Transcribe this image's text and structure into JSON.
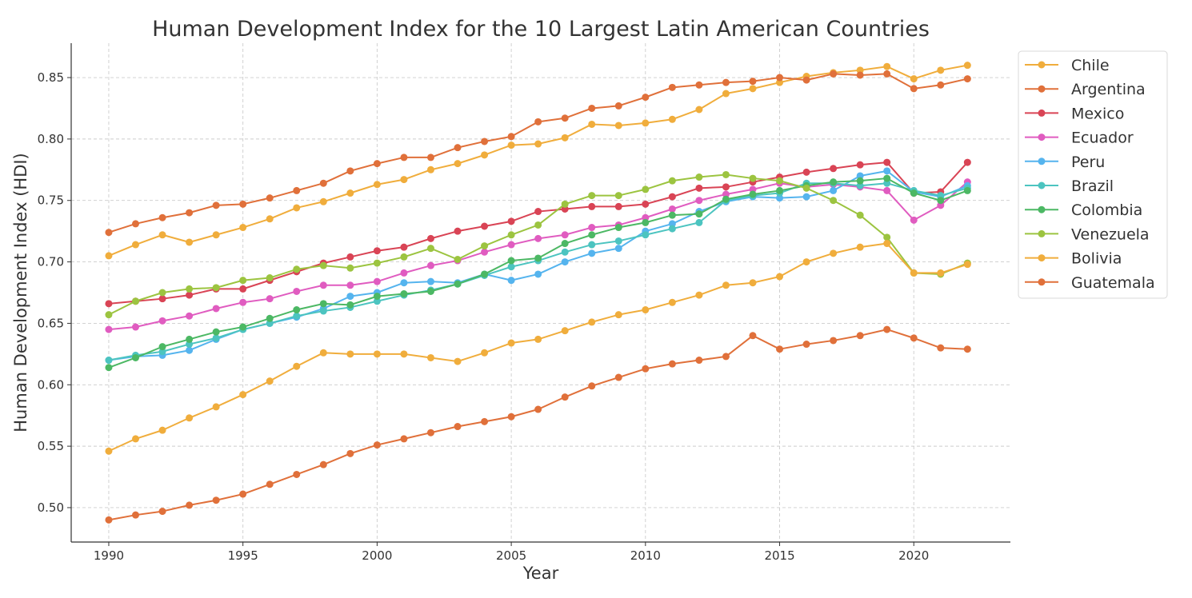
{
  "chart_data": {
    "type": "line",
    "title": "Human Development Index for the 10 Largest Latin American Countries",
    "xlabel": "Year",
    "ylabel": "Human Development Index (HDI)",
    "xlim": [
      1988.6,
      2023.6
    ],
    "ylim": [
      0.472,
      0.878
    ],
    "x_ticks": [
      1990,
      1995,
      2000,
      2005,
      2010,
      2015,
      2020
    ],
    "y_ticks": [
      0.5,
      0.55,
      0.6,
      0.65,
      0.7,
      0.75,
      0.8,
      0.85
    ],
    "y_tick_labels": [
      "0.50",
      "0.55",
      "0.60",
      "0.65",
      "0.70",
      "0.75",
      "0.80",
      "0.85"
    ],
    "grid": true,
    "legend_position": "outside-top-right",
    "x": [
      1990,
      1991,
      1992,
      1993,
      1994,
      1995,
      1996,
      1997,
      1998,
      1999,
      2000,
      2001,
      2002,
      2003,
      2004,
      2005,
      2006,
      2007,
      2008,
      2009,
      2010,
      2011,
      2012,
      2013,
      2014,
      2015,
      2016,
      2017,
      2018,
      2019,
      2020,
      2021,
      2022
    ],
    "series": [
      {
        "name": "Chile",
        "color": "#f0ad3c",
        "values": [
          0.705,
          0.714,
          0.722,
          0.716,
          0.722,
          0.728,
          0.735,
          0.744,
          0.749,
          0.756,
          0.763,
          0.767,
          0.775,
          0.78,
          0.787,
          0.795,
          0.796,
          0.801,
          0.812,
          0.811,
          0.813,
          0.816,
          0.824,
          0.837,
          0.841,
          0.846,
          0.851,
          0.854,
          0.856,
          0.859,
          0.849,
          0.856,
          0.86
        ]
      },
      {
        "name": "Argentina",
        "color": "#e0703a",
        "values": [
          0.724,
          0.731,
          0.736,
          0.74,
          0.746,
          0.747,
          0.752,
          0.758,
          0.764,
          0.774,
          0.78,
          0.785,
          0.785,
          0.793,
          0.798,
          0.802,
          0.814,
          0.817,
          0.825,
          0.827,
          0.834,
          0.842,
          0.844,
          0.846,
          0.847,
          0.85,
          0.848,
          0.853,
          0.852,
          0.853,
          0.841,
          0.844,
          0.849
        ]
      },
      {
        "name": "Mexico",
        "color": "#d94455",
        "values": [
          0.666,
          0.668,
          0.67,
          0.673,
          0.678,
          0.678,
          0.685,
          0.692,
          0.699,
          0.704,
          0.709,
          0.712,
          0.719,
          0.725,
          0.729,
          0.733,
          0.741,
          0.743,
          0.745,
          0.745,
          0.747,
          0.753,
          0.76,
          0.761,
          0.765,
          0.769,
          0.773,
          0.776,
          0.779,
          0.781,
          0.756,
          0.757,
          0.781
        ]
      },
      {
        "name": "Ecuador",
        "color": "#e05cc0",
        "values": [
          0.645,
          0.647,
          0.652,
          0.656,
          0.662,
          0.667,
          0.67,
          0.676,
          0.681,
          0.681,
          0.684,
          0.691,
          0.697,
          0.701,
          0.708,
          0.714,
          0.719,
          0.722,
          0.728,
          0.73,
          0.736,
          0.743,
          0.75,
          0.755,
          0.759,
          0.764,
          0.761,
          0.763,
          0.761,
          0.758,
          0.734,
          0.746,
          0.765
        ]
      },
      {
        "name": "Peru",
        "color": "#55b4ee",
        "values": [
          0.62,
          0.623,
          0.624,
          0.628,
          0.637,
          0.645,
          0.65,
          0.655,
          0.662,
          0.672,
          0.675,
          0.683,
          0.684,
          0.683,
          0.69,
          0.685,
          0.69,
          0.7,
          0.707,
          0.711,
          0.725,
          0.731,
          0.741,
          0.749,
          0.753,
          0.752,
          0.753,
          0.758,
          0.77,
          0.774,
          0.757,
          0.753,
          0.762
        ]
      },
      {
        "name": "Brazil",
        "color": "#4cc4c0",
        "values": [
          0.62,
          0.624,
          0.627,
          0.633,
          0.638,
          0.645,
          0.65,
          0.656,
          0.66,
          0.663,
          0.668,
          0.673,
          0.677,
          0.682,
          0.689,
          0.696,
          0.701,
          0.708,
          0.714,
          0.717,
          0.722,
          0.727,
          0.732,
          0.75,
          0.754,
          0.756,
          0.764,
          0.764,
          0.762,
          0.764,
          0.758,
          0.754,
          0.76
        ]
      },
      {
        "name": "Colombia",
        "color": "#4cb864",
        "values": [
          0.614,
          0.622,
          0.631,
          0.637,
          0.643,
          0.647,
          0.654,
          0.661,
          0.666,
          0.665,
          0.672,
          0.674,
          0.676,
          0.682,
          0.69,
          0.701,
          0.703,
          0.715,
          0.722,
          0.728,
          0.732,
          0.738,
          0.739,
          0.751,
          0.755,
          0.758,
          0.762,
          0.765,
          0.766,
          0.768,
          0.756,
          0.75,
          0.758
        ]
      },
      {
        "name": "Venezuela",
        "color": "#9cc440",
        "values": [
          0.657,
          0.668,
          0.675,
          0.678,
          0.679,
          0.685,
          0.687,
          0.694,
          0.697,
          0.695,
          0.699,
          0.704,
          0.711,
          0.702,
          0.713,
          0.722,
          0.73,
          0.747,
          0.754,
          0.754,
          0.759,
          0.766,
          0.769,
          0.771,
          0.768,
          0.766,
          0.76,
          0.75,
          0.738,
          0.72,
          0.691,
          0.69,
          0.699
        ]
      },
      {
        "name": "Bolivia",
        "color": "#f0ad3c",
        "values": [
          0.546,
          0.556,
          0.563,
          0.573,
          0.582,
          0.592,
          0.603,
          0.615,
          0.626,
          0.625,
          0.625,
          0.625,
          0.622,
          0.619,
          0.626,
          0.634,
          0.637,
          0.644,
          0.651,
          0.657,
          0.661,
          0.667,
          0.673,
          0.681,
          0.683,
          0.688,
          0.7,
          0.707,
          0.712,
          0.715,
          0.691,
          0.691,
          0.698
        ]
      },
      {
        "name": "Guatemala",
        "color": "#e0703a",
        "values": [
          0.49,
          0.494,
          0.497,
          0.502,
          0.506,
          0.511,
          0.519,
          0.527,
          0.535,
          0.544,
          0.551,
          0.556,
          0.561,
          0.566,
          0.57,
          0.574,
          0.58,
          0.59,
          0.599,
          0.606,
          0.613,
          0.617,
          0.62,
          0.623,
          0.64,
          0.629,
          0.633,
          0.636,
          0.64,
          0.645,
          0.638,
          0.63,
          0.629
        ]
      }
    ]
  }
}
